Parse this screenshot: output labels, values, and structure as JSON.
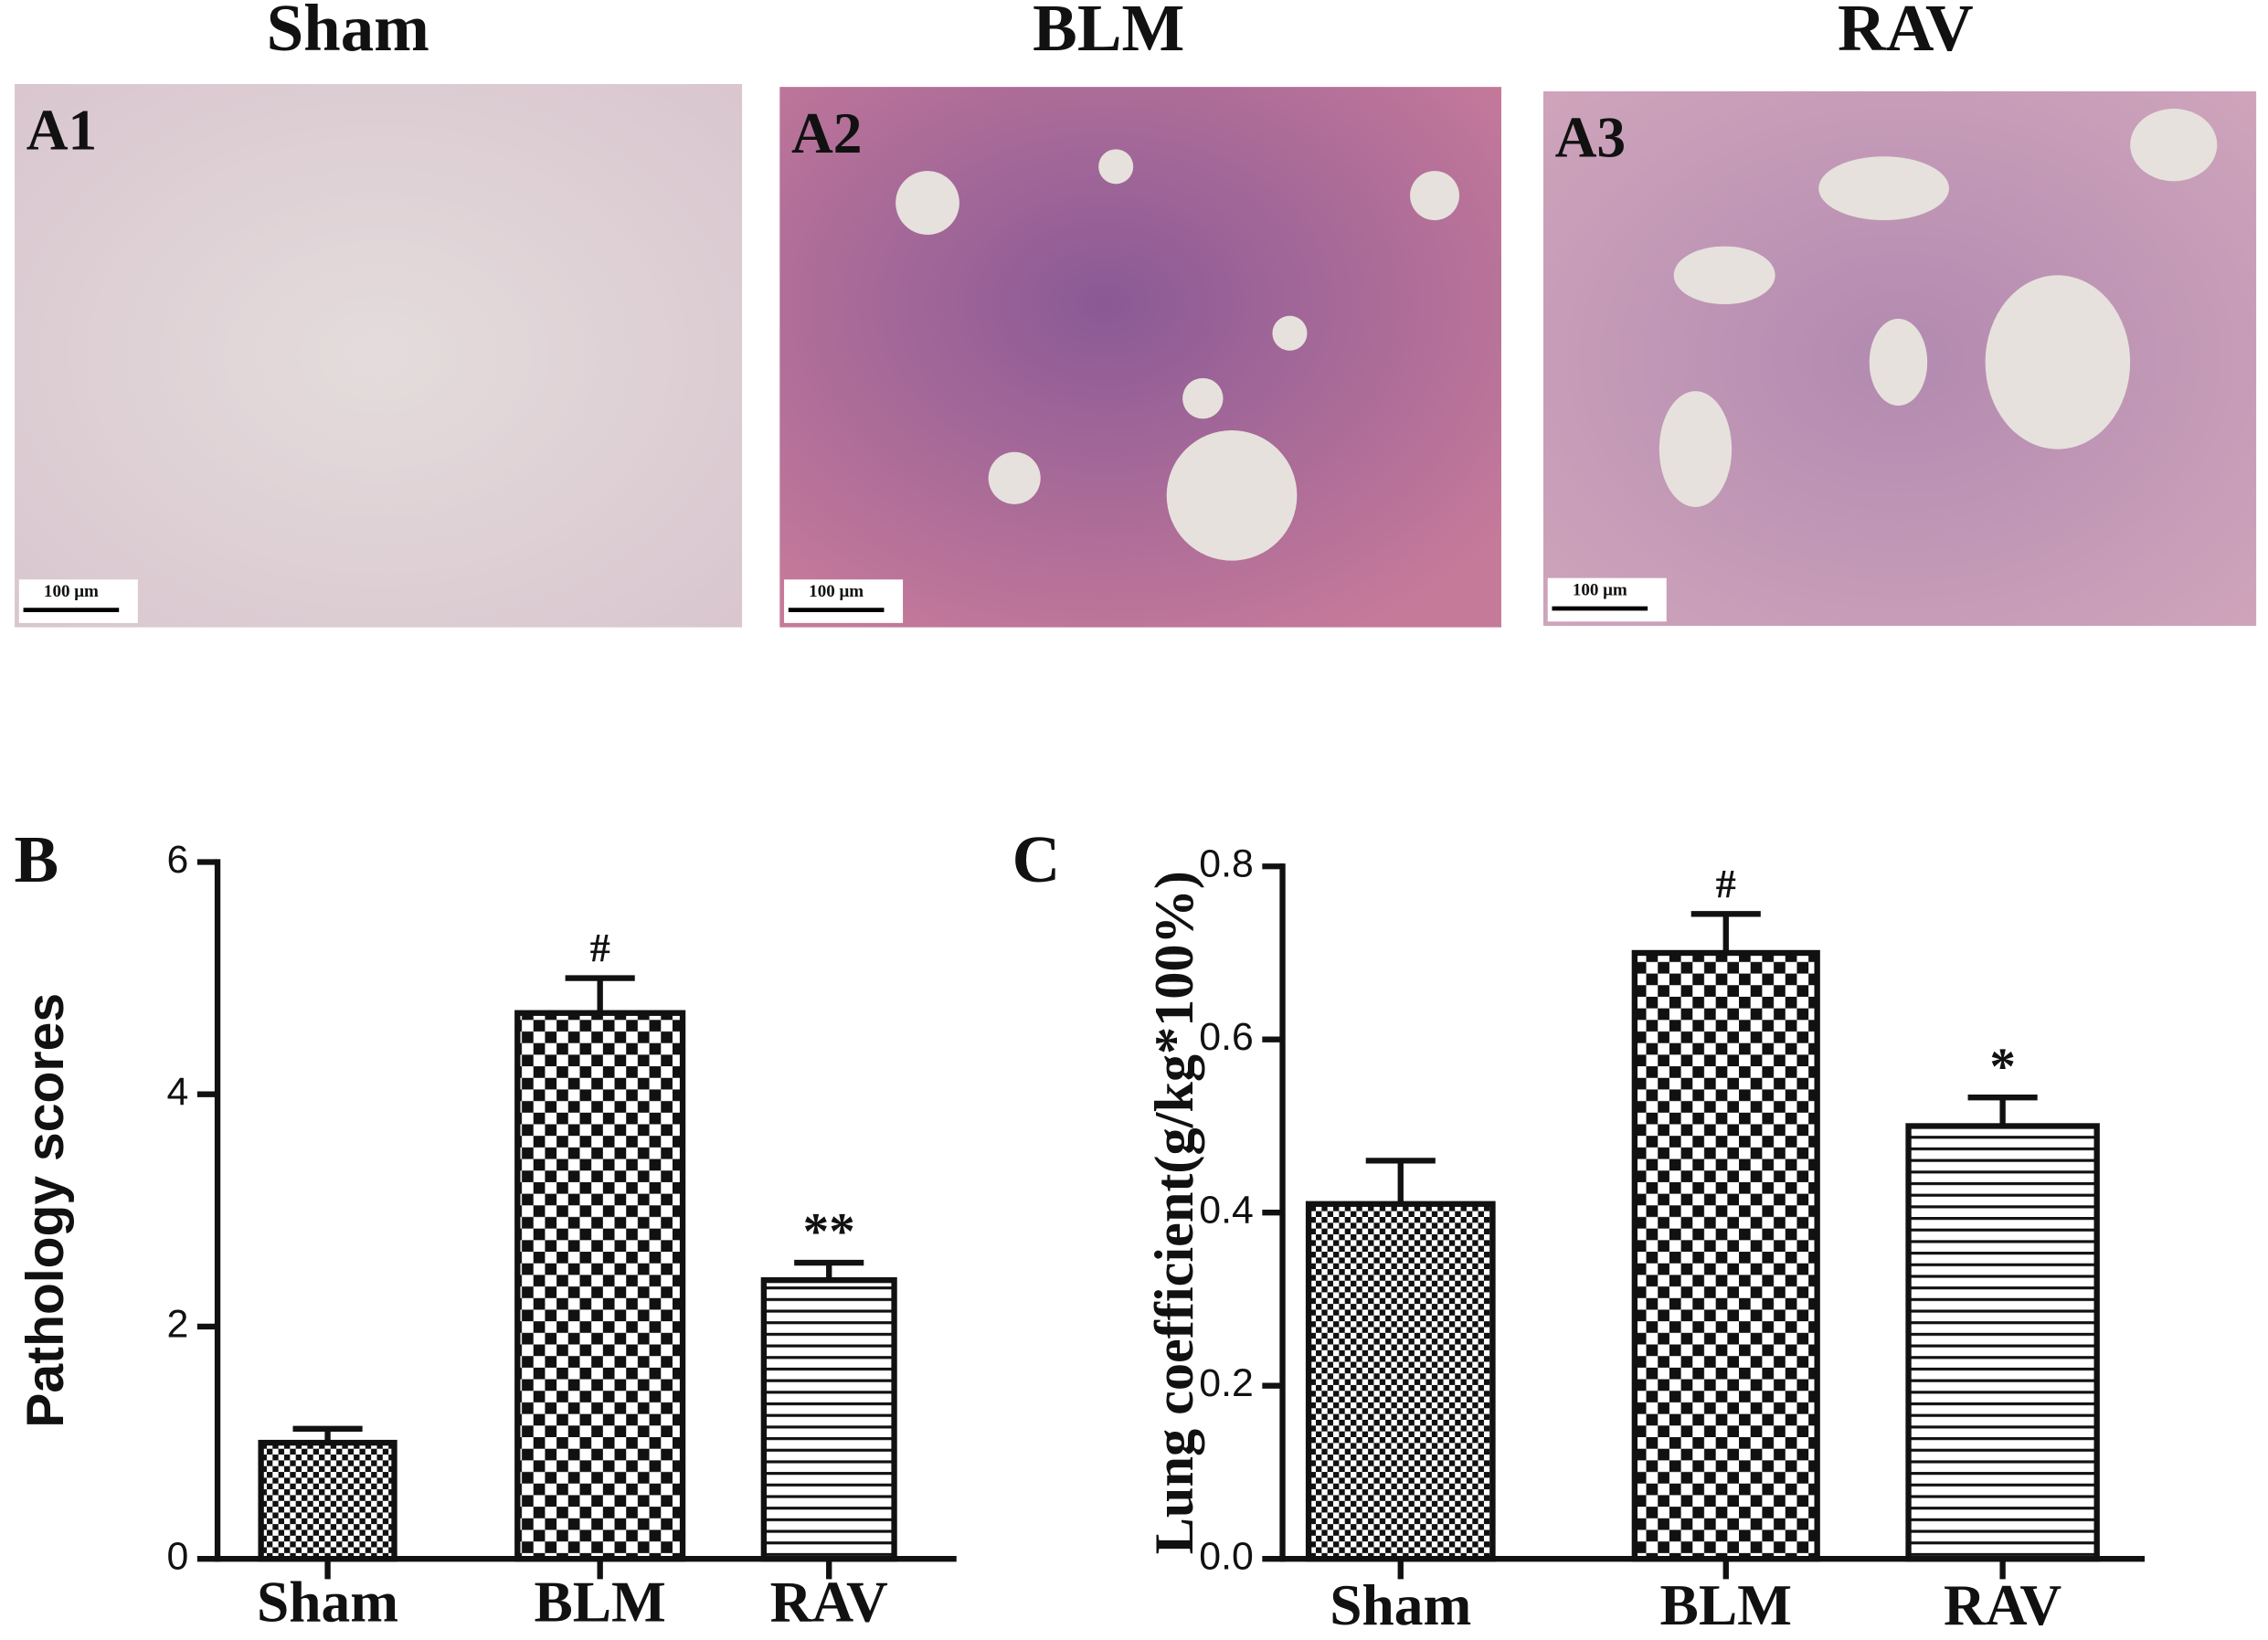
{
  "images": [
    {
      "title": "Sham",
      "label": "A1",
      "scale_bar": "100 μm"
    },
    {
      "title": "BLM",
      "label": "A2",
      "scale_bar": "100 μm"
    },
    {
      "title": "RAV",
      "label": "A3",
      "scale_bar": "100 μm"
    }
  ],
  "chart_data": [
    {
      "type": "bar",
      "panel_label": "B",
      "y_label": "Pathology scores",
      "categories": [
        "Sham",
        "BLM",
        "RAV"
      ],
      "values": [
        1.0,
        4.7,
        2.4
      ],
      "errors": [
        0.12,
        0.3,
        0.15
      ],
      "patterns": [
        "fine-check",
        "check",
        "stripes"
      ],
      "annotations": [
        {
          "category": "BLM",
          "text": "#"
        },
        {
          "category": "RAV",
          "text": "**"
        }
      ],
      "ylim": [
        0,
        6
      ],
      "yticks": [
        0,
        2,
        4,
        6
      ]
    },
    {
      "type": "bar",
      "panel_label": "C",
      "y_label": "Lung coefficient(g/kg*100%)",
      "categories": [
        "Sham",
        "BLM",
        "RAV"
      ],
      "values": [
        0.41,
        0.7,
        0.5
      ],
      "errors": [
        0.05,
        0.045,
        0.033
      ],
      "patterns": [
        "fine-check",
        "check",
        "stripes"
      ],
      "annotations": [
        {
          "category": "BLM",
          "text": "#"
        },
        {
          "category": "RAV",
          "text": "*"
        }
      ],
      "ylim": [
        0,
        0.8
      ],
      "yticks": [
        {
          "value": 0,
          "label": "0.0"
        },
        0.2,
        0.4,
        0.6,
        0.8
      ]
    }
  ]
}
